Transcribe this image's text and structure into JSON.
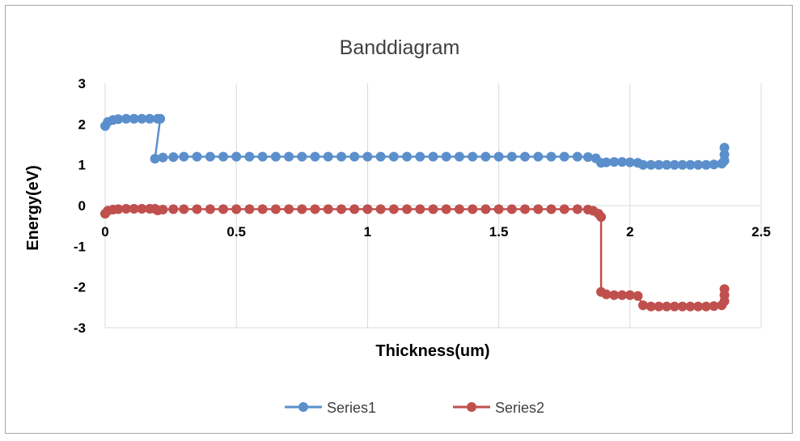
{
  "chart_data": {
    "type": "line",
    "title": "Banddiagram",
    "xlabel": "Thickness(um)",
    "ylabel": "Energy(eV)",
    "xlim": [
      0,
      2.5
    ],
    "ylim": [
      -3,
      3
    ],
    "x_ticks": [
      "0",
      "0.5",
      "1",
      "1.5",
      "2",
      "2.5"
    ],
    "y_ticks": [
      "3",
      "2",
      "1",
      "0",
      "-1",
      "-2",
      "-3"
    ],
    "grid": "vertical",
    "legend": "bottom",
    "series": [
      {
        "name": "Series1",
        "color": "#5b8fcc",
        "points": [
          [
            0.0,
            1.95
          ],
          [
            0.01,
            2.05
          ],
          [
            0.03,
            2.1
          ],
          [
            0.05,
            2.12
          ],
          [
            0.08,
            2.13
          ],
          [
            0.11,
            2.13
          ],
          [
            0.14,
            2.13
          ],
          [
            0.17,
            2.13
          ],
          [
            0.2,
            2.13
          ],
          [
            0.21,
            2.13
          ],
          [
            0.19,
            1.15
          ],
          [
            0.22,
            1.18
          ],
          [
            0.26,
            1.19
          ],
          [
            0.3,
            1.2
          ],
          [
            0.35,
            1.2
          ],
          [
            0.4,
            1.2
          ],
          [
            0.45,
            1.2
          ],
          [
            0.5,
            1.2
          ],
          [
            0.55,
            1.2
          ],
          [
            0.6,
            1.2
          ],
          [
            0.65,
            1.2
          ],
          [
            0.7,
            1.2
          ],
          [
            0.75,
            1.2
          ],
          [
            0.8,
            1.2
          ],
          [
            0.85,
            1.2
          ],
          [
            0.9,
            1.2
          ],
          [
            0.95,
            1.2
          ],
          [
            1.0,
            1.2
          ],
          [
            1.05,
            1.2
          ],
          [
            1.1,
            1.2
          ],
          [
            1.15,
            1.2
          ],
          [
            1.2,
            1.2
          ],
          [
            1.25,
            1.2
          ],
          [
            1.3,
            1.2
          ],
          [
            1.35,
            1.2
          ],
          [
            1.4,
            1.2
          ],
          [
            1.45,
            1.2
          ],
          [
            1.5,
            1.2
          ],
          [
            1.55,
            1.2
          ],
          [
            1.6,
            1.2
          ],
          [
            1.65,
            1.2
          ],
          [
            1.7,
            1.2
          ],
          [
            1.75,
            1.2
          ],
          [
            1.8,
            1.2
          ],
          [
            1.84,
            1.19
          ],
          [
            1.87,
            1.16
          ],
          [
            1.89,
            1.05
          ],
          [
            1.91,
            1.06
          ],
          [
            1.94,
            1.07
          ],
          [
            1.97,
            1.07
          ],
          [
            2.0,
            1.06
          ],
          [
            2.03,
            1.05
          ],
          [
            2.05,
            1.0
          ],
          [
            2.08,
            1.0
          ],
          [
            2.11,
            1.0
          ],
          [
            2.14,
            1.0
          ],
          [
            2.17,
            1.0
          ],
          [
            2.2,
            1.0
          ],
          [
            2.23,
            1.0
          ],
          [
            2.26,
            1.0
          ],
          [
            2.29,
            1.0
          ],
          [
            2.32,
            1.01
          ],
          [
            2.35,
            1.03
          ],
          [
            2.36,
            1.1
          ],
          [
            2.36,
            1.25
          ],
          [
            2.36,
            1.42
          ]
        ]
      },
      {
        "name": "Series2",
        "color": "#c0504d",
        "points": [
          [
            0.0,
            -0.2
          ],
          [
            0.01,
            -0.13
          ],
          [
            0.03,
            -0.1
          ],
          [
            0.05,
            -0.09
          ],
          [
            0.08,
            -0.08
          ],
          [
            0.11,
            -0.08
          ],
          [
            0.14,
            -0.08
          ],
          [
            0.17,
            -0.08
          ],
          [
            0.19,
            -0.08
          ],
          [
            0.2,
            -0.12
          ],
          [
            0.22,
            -0.1
          ],
          [
            0.26,
            -0.09
          ],
          [
            0.3,
            -0.09
          ],
          [
            0.35,
            -0.09
          ],
          [
            0.4,
            -0.09
          ],
          [
            0.45,
            -0.09
          ],
          [
            0.5,
            -0.09
          ],
          [
            0.55,
            -0.09
          ],
          [
            0.6,
            -0.09
          ],
          [
            0.65,
            -0.09
          ],
          [
            0.7,
            -0.09
          ],
          [
            0.75,
            -0.09
          ],
          [
            0.8,
            -0.09
          ],
          [
            0.85,
            -0.09
          ],
          [
            0.9,
            -0.09
          ],
          [
            0.95,
            -0.09
          ],
          [
            1.0,
            -0.09
          ],
          [
            1.05,
            -0.09
          ],
          [
            1.1,
            -0.09
          ],
          [
            1.15,
            -0.09
          ],
          [
            1.2,
            -0.09
          ],
          [
            1.25,
            -0.09
          ],
          [
            1.3,
            -0.09
          ],
          [
            1.35,
            -0.09
          ],
          [
            1.4,
            -0.09
          ],
          [
            1.45,
            -0.09
          ],
          [
            1.5,
            -0.09
          ],
          [
            1.55,
            -0.09
          ],
          [
            1.6,
            -0.09
          ],
          [
            1.65,
            -0.09
          ],
          [
            1.7,
            -0.09
          ],
          [
            1.75,
            -0.09
          ],
          [
            1.8,
            -0.09
          ],
          [
            1.84,
            -0.1
          ],
          [
            1.86,
            -0.13
          ],
          [
            1.88,
            -0.2
          ],
          [
            1.89,
            -0.28
          ],
          [
            1.89,
            -2.12
          ],
          [
            1.91,
            -2.18
          ],
          [
            1.94,
            -2.2
          ],
          [
            1.97,
            -2.2
          ],
          [
            2.0,
            -2.2
          ],
          [
            2.03,
            -2.22
          ],
          [
            2.05,
            -2.45
          ],
          [
            2.08,
            -2.48
          ],
          [
            2.11,
            -2.48
          ],
          [
            2.14,
            -2.48
          ],
          [
            2.17,
            -2.48
          ],
          [
            2.2,
            -2.48
          ],
          [
            2.23,
            -2.48
          ],
          [
            2.26,
            -2.48
          ],
          [
            2.29,
            -2.48
          ],
          [
            2.32,
            -2.47
          ],
          [
            2.35,
            -2.45
          ],
          [
            2.36,
            -2.35
          ],
          [
            2.36,
            -2.2
          ],
          [
            2.36,
            -2.05
          ]
        ]
      }
    ]
  }
}
